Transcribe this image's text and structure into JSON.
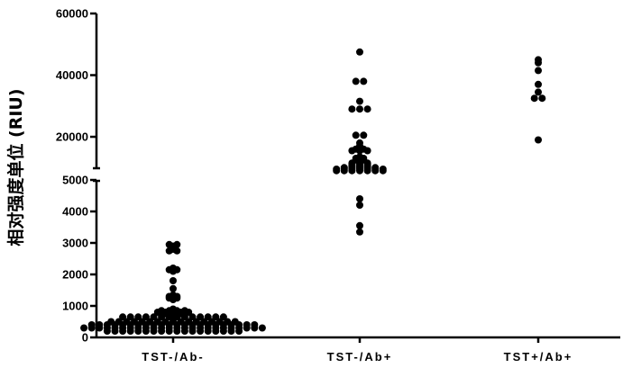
{
  "chart_data": {
    "type": "scatter",
    "title": "",
    "xlabel": "",
    "ylabel": "相对强度单位 (RIU)",
    "categories": [
      "TST-/Ab-",
      "TST-/Ab+",
      "TST+/Ab+"
    ],
    "y_axis": {
      "segmented": true,
      "lower_segment": {
        "ylim": [
          0,
          5000
        ],
        "ticks": [
          0,
          1000,
          2000,
          3000,
          4000,
          5000
        ]
      },
      "upper_segment": {
        "ylim": [
          6000,
          60000
        ],
        "ticks": [
          20000,
          40000,
          60000
        ]
      },
      "tick_labels": [
        "0",
        "1000",
        "2000",
        "3000",
        "4000",
        "5000",
        "20000",
        "40000",
        "60000"
      ]
    },
    "grid": false,
    "legend": "none",
    "series": [
      {
        "category": "TST-/Ab-",
        "values": [
          2950,
          2900,
          2950,
          2800,
          2750,
          2750,
          2200,
          2150,
          2100,
          2150,
          1800,
          1550,
          1350,
          1300,
          1250,
          1250,
          1200,
          1300,
          900,
          850,
          850,
          850,
          800,
          800,
          800,
          800,
          750,
          750,
          750,
          800,
          850,
          700,
          650,
          650,
          650,
          650,
          650,
          650,
          650,
          650,
          650,
          650,
          650,
          650,
          650,
          650,
          600,
          500,
          500,
          500,
          500,
          500,
          500,
          500,
          500,
          500,
          500,
          500,
          500,
          500,
          500,
          500,
          500,
          500,
          400,
          400,
          400,
          400,
          400,
          400,
          400,
          400,
          400,
          400,
          400,
          400,
          400,
          400,
          400,
          400,
          400,
          400,
          400,
          400,
          400,
          400,
          300,
          300,
          300,
          300,
          300,
          300,
          300,
          300,
          300,
          300,
          300,
          300,
          300,
          300,
          300,
          300,
          300,
          300,
          300,
          300,
          300,
          300,
          300,
          300,
          200,
          200,
          200,
          200,
          200,
          200,
          200,
          200,
          200,
          200,
          200,
          200,
          200,
          200,
          200,
          200,
          200,
          200
        ]
      },
      {
        "category": "TST-/Ab+",
        "values": [
          47500,
          38000,
          38000,
          31500,
          29000,
          29000,
          29000,
          20500,
          20500,
          18000,
          17000,
          16000,
          16000,
          15500,
          15500,
          15500,
          13500,
          13000,
          13000,
          12500,
          12500,
          11500,
          11500,
          11500,
          11000,
          11000,
          11000,
          10500,
          10500,
          10500,
          10000,
          10000,
          10000,
          10000,
          10000,
          9500,
          9500,
          9500,
          9500,
          9500,
          9500,
          9500,
          9000,
          9000,
          9000,
          9000,
          9000,
          9000,
          9000,
          4400,
          4200,
          3550,
          3350
        ]
      },
      {
        "category": "TST+/Ab+",
        "values": [
          45000,
          44000,
          41500,
          37000,
          34500,
          32500,
          32500,
          19000
        ]
      }
    ]
  }
}
